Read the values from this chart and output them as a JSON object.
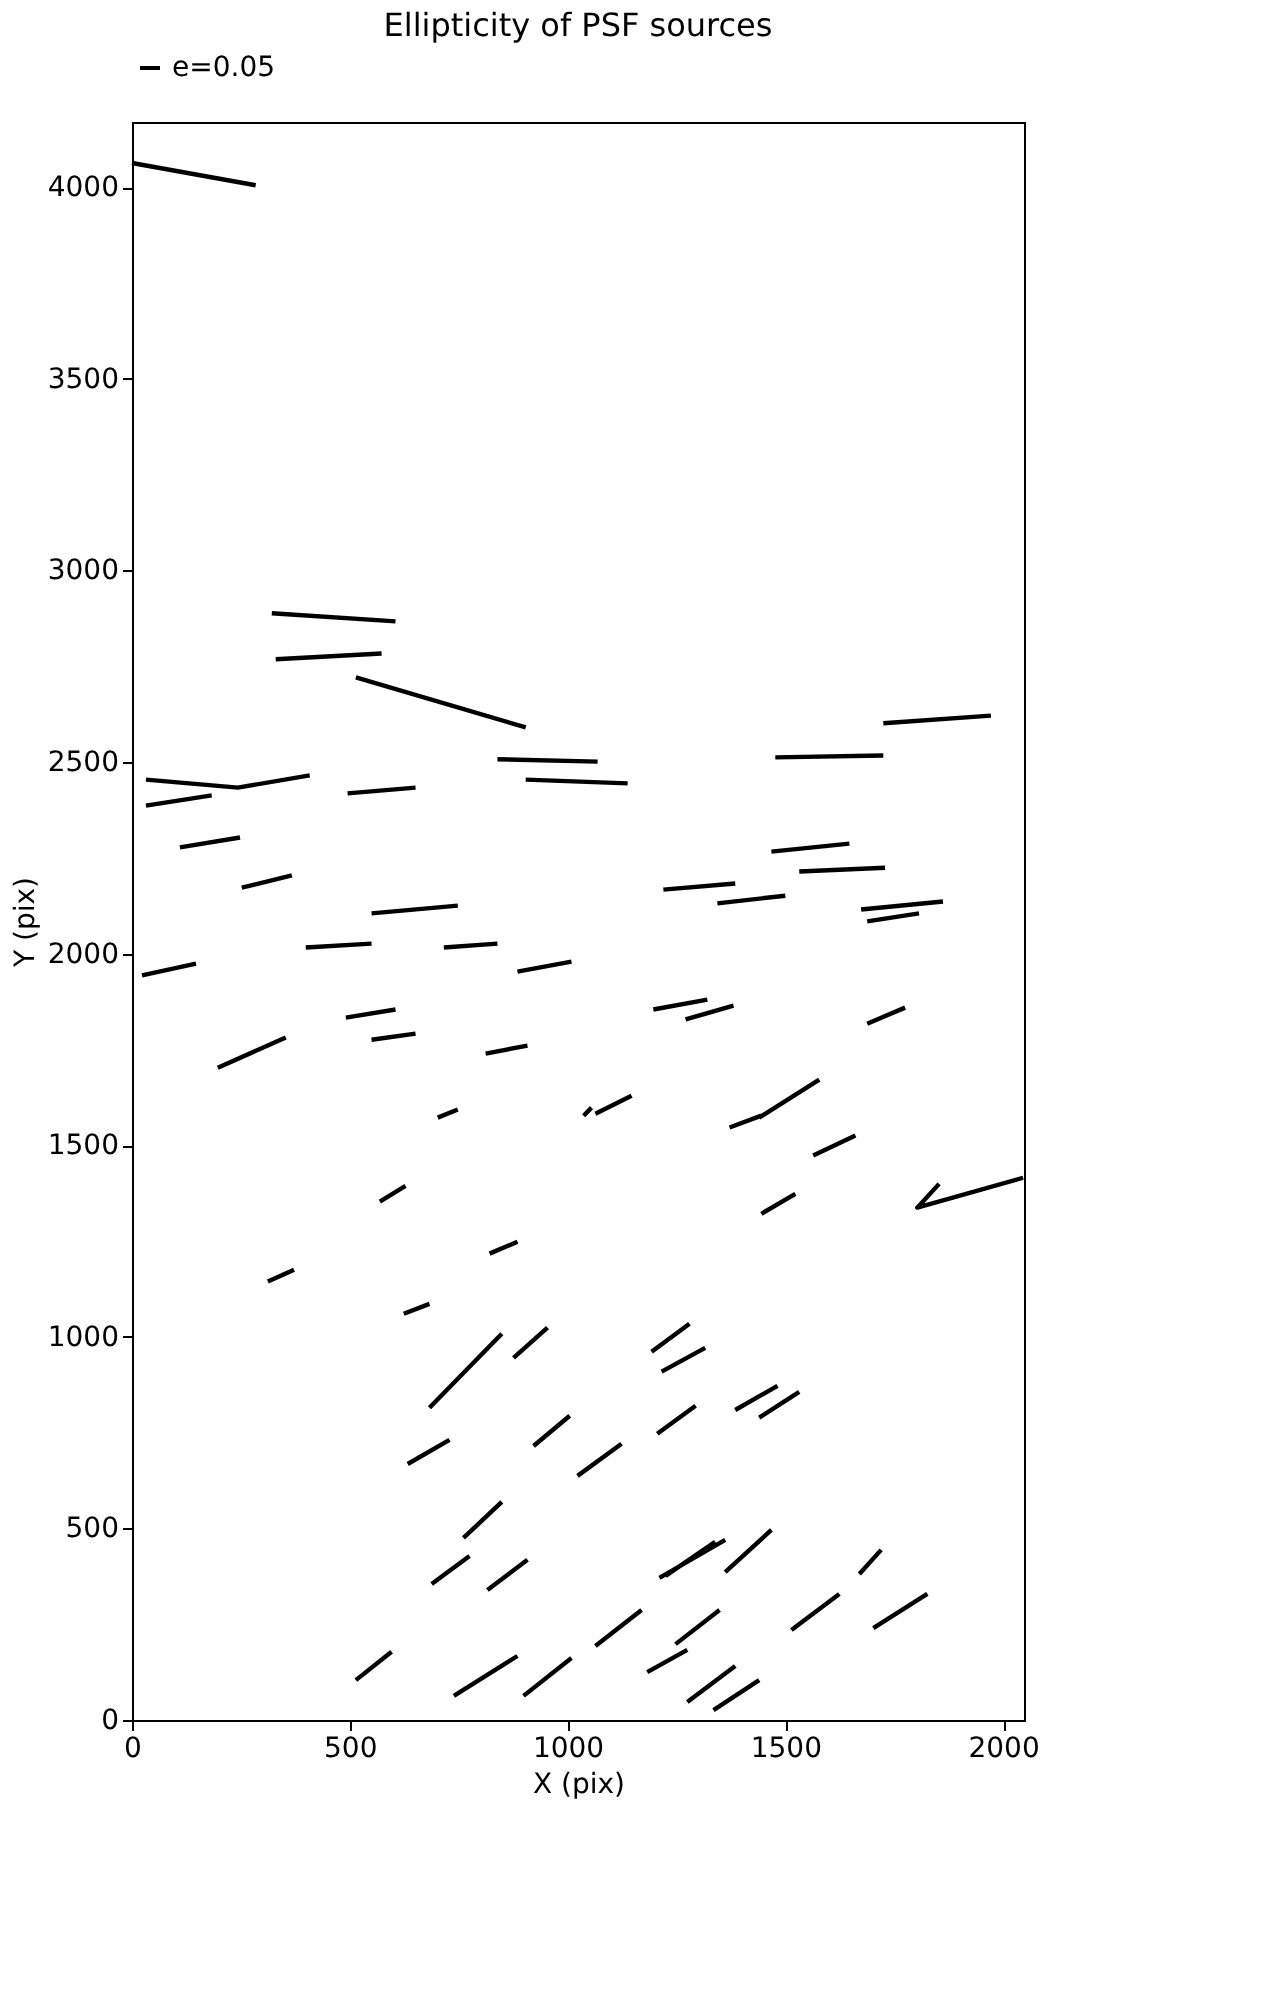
{
  "chart_data": {
    "type": "line",
    "title": "Ellipticity of PSF sources",
    "xlabel": "X (pix)",
    "ylabel": "Y (pix)",
    "xlim": [
      0,
      2048
    ],
    "ylim": [
      0,
      4170
    ],
    "xticks": [
      0,
      500,
      1000,
      1500,
      2000
    ],
    "yticks": [
      0,
      500,
      1000,
      1500,
      2000,
      2500,
      3000,
      3500,
      4000
    ],
    "grid": false,
    "legend": "top left",
    "marker": "none",
    "line_style": "solid",
    "series": [
      {
        "name": "e=0.05",
        "color": "#000000",
        "x": [
          0,
          284,
          null,
          321,
          605,
          null,
          330,
          573,
          null,
          514,
          904,
          null,
          839,
          1069,
          null,
          904,
          1138,
          null,
          1477,
          1725,
          null,
          1725,
          1972,
          null,
          32,
          243,
          408,
          null,
          32,
          183,
          null,
          495,
          651,
          null,
          110,
          248,
          null,
          252,
          367,
          null,
          550,
          748,
          null,
          399,
          550,
          null,
          716,
          839,
          null,
          23,
          147,
          null,
          885,
          1009,
          null,
          1220,
          1385,
          null,
          1468,
          1647,
          null,
          1532,
          1729,
          null,
          1344,
          1500,
          null,
          1674,
          1862,
          null,
          1688,
          1807,
          null,
          491,
          605,
          null,
          550,
          651,
          null,
          1197,
          1321,
          null,
          1271,
          1381,
          null,
          1688,
          1775,
          null,
          197,
          353,
          null,
          812,
          908,
          null,
          702,
          748,
          null,
          1037,
          1055,
          null,
          1064,
          1147,
          null,
          1372,
          1445,
          null,
          1440,
          1578,
          null,
          1564,
          1661,
          null,
          569,
          628,
          null,
          1445,
          1523,
          null,
          1853,
          1803,
          2046,
          null,
          312,
          372,
          null,
          821,
          885,
          null,
          624,
          683,
          null,
          683,
          849,
          null,
          876,
          954,
          null,
          1193,
          1280,
          null,
          1216,
          1316,
          null,
          1385,
          1482,
          null,
          1440,
          1532,
          null,
          633,
          729,
          null,
          922,
          1005,
          null,
          1023,
          1124,
          null,
          1206,
          1294,
          null,
          761,
          849,
          null,
          688,
          775,
          null,
          816,
          908,
          null,
          1211,
          1362,
          null,
          1225,
          1339,
          null,
          1362,
          1468,
          null,
          1670,
          1720,
          null,
          1514,
          1624,
          null,
          1702,
          1826,
          null,
          514,
          596,
          null,
          739,
          885,
          null,
          899,
          1009,
          null,
          1064,
          1170,
          null,
          1248,
          1349,
          null,
          1183,
          1275,
          null,
          1275,
          1385,
          null,
          1335,
          1440
        ],
        "values": [
          4063,
          4005,
          null,
          2888,
          2867,
          null,
          2768,
          2783,
          null,
          2721,
          2590,
          null,
          2507,
          2501,
          null,
          2454,
          2444,
          null,
          2512,
          2517,
          null,
          2601,
          2621,
          null,
          2454,
          2433,
          2465,
          null,
          2386,
          2413,
          null,
          2418,
          2433,
          null,
          2277,
          2303,
          null,
          2172,
          2204,
          null,
          2105,
          2125,
          null,
          2016,
          2026,
          null,
          2016,
          2026,
          null,
          1943,
          1974,
          null,
          1953,
          1979,
          null,
          2167,
          2183,
          null,
          2266,
          2287,
          null,
          2214,
          2224,
          null,
          2131,
          2151,
          null,
          2115,
          2136,
          null,
          2084,
          2105,
          null,
          1833,
          1854,
          null,
          1775,
          1791,
          null,
          1854,
          1880,
          null,
          1828,
          1864,
          null,
          1817,
          1859,
          null,
          1702,
          1781,
          null,
          1739,
          1760,
          null,
          1572,
          1593,
          null,
          1577,
          1598,
          null,
          1582,
          1629,
          null,
          1546,
          1577,
          null,
          1572,
          1671,
          null,
          1473,
          1525,
          null,
          1353,
          1394,
          null,
          1321,
          1373,
          null,
          1399,
          1337,
          1415,
          null,
          1144,
          1175,
          null,
          1217,
          1248,
          null,
          1060,
          1086,
          null,
          815,
          1008,
          null,
          945,
          1024,
          null,
          961,
          1034,
          null,
          909,
          971,
          null,
          809,
          872,
          null,
          789,
          856,
          null,
          668,
          731,
          null,
          715,
          794,
          null,
          637,
          721,
          null,
          747,
          820,
          null,
          475,
          569,
          null,
          355,
          428,
          null,
          339,
          418,
          null,
          371,
          470,
          null,
          376,
          465,
          null,
          386,
          496,
          null,
          381,
          444,
          null,
          235,
          329,
          null,
          240,
          329,
          null,
          104,
          178,
          null,
          63,
          167,
          null,
          63,
          162,
          null,
          193,
          287,
          null,
          198,
          287,
          null,
          125,
          183,
          null,
          47,
          141,
          null,
          26,
          104
        ]
      }
    ]
  }
}
